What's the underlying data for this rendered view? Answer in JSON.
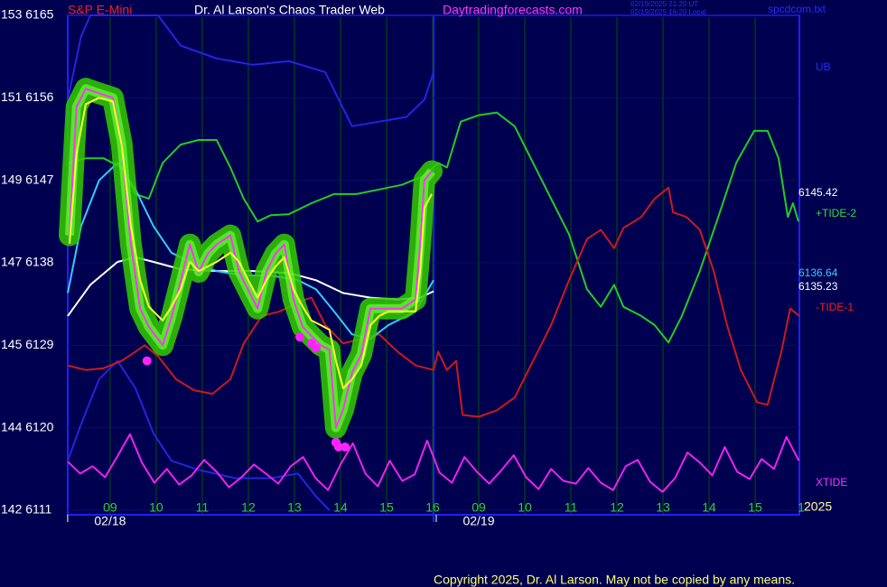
{
  "chart_data": {
    "type": "line",
    "title": "Dr. Al Larson's Chaos Trader Web",
    "symbol": "S&P E-Mini",
    "site": "Daytradingforecasts.com",
    "timestamps": [
      "02/19/2025 21:20 UT",
      "02/19/2025 16:20 Local"
    ],
    "file": "spcdcom.txt",
    "copyright": "Copyright 2025, Dr. Al Larson. May not be copied by any means.",
    "year": "2025",
    "date_labels": [
      {
        "value": 1,
        "label": "02/18"
      },
      {
        "value": 9,
        "label": "02/19"
      }
    ],
    "xlim": [
      0.08,
      15.96
    ],
    "ylim": [
      6111,
      6165
    ],
    "xticks": [
      {
        "value": 1,
        "label": "09"
      },
      {
        "value": 2,
        "label": "10"
      },
      {
        "value": 3,
        "label": "11"
      },
      {
        "value": 4,
        "label": "12"
      },
      {
        "value": 5,
        "label": "13"
      },
      {
        "value": 6,
        "label": "14"
      },
      {
        "value": 7,
        "label": "15"
      },
      {
        "value": 8,
        "label": "16"
      },
      {
        "value": 9,
        "label": "09"
      },
      {
        "value": 10,
        "label": "10"
      },
      {
        "value": 11,
        "label": "11"
      },
      {
        "value": 12,
        "label": "12"
      },
      {
        "value": 13,
        "label": "13"
      },
      {
        "value": 14,
        "label": "14"
      },
      {
        "value": 15,
        "label": "15"
      },
      {
        "value": 16,
        "label": "1"
      }
    ],
    "yticks": [
      {
        "value": 6165,
        "label": "153 6165"
      },
      {
        "value": 6156,
        "label": "151 6156"
      },
      {
        "value": 6147,
        "label": "149 6147"
      },
      {
        "value": 6138,
        "label": "147 6138"
      },
      {
        "value": 6129,
        "label": "145 6129"
      },
      {
        "value": 6120,
        "label": "144 6120"
      },
      {
        "value": 6111,
        "label": "142 6111"
      }
    ],
    "grid": true,
    "right_labels": [
      {
        "text": "UB",
        "color": "#2a2aff"
      },
      {
        "text": "6145.42",
        "color": "#ffffff"
      },
      {
        "text": "+TIDE-2",
        "color": "#33dd33"
      },
      {
        "text": "6136.64",
        "color": "#33ccff"
      },
      {
        "text": "6135.23",
        "color": "#ffffff"
      },
      {
        "text": "-TIDE-1",
        "color": "#ee2222"
      },
      {
        "text": "XTIDE",
        "color": "#ff33ff"
      }
    ],
    "series": [
      {
        "name": "UB",
        "color": "#2424e0",
        "x": [
          0.08,
          0.37,
          0.57,
          2.04,
          2.53,
          3.31,
          4.1,
          4.88,
          5.67,
          6.25,
          6.84,
          7.43,
          7.82,
          8.02
        ],
        "values": [
          6155.8,
          6162.7,
          6165,
          6165,
          6161.7,
          6160.3,
          6159.6,
          6160.0,
          6158.8,
          6152.9,
          6153.4,
          6153.9,
          6155.8,
          6158.8
        ]
      },
      {
        "color": "#2424e0",
        "x": [
          0.08,
          0.37,
          0.76,
          1.16,
          1.55,
          1.94,
          2.33,
          2.92,
          3.71,
          4.49,
          5.08,
          5.47,
          5.76
        ],
        "values": [
          6116.4,
          6120.4,
          6125.3,
          6127.3,
          6124.3,
          6119.4,
          6116.4,
          6115.4,
          6114.5,
          6114.5,
          6115.0,
          6112.5,
          6111.0
        ]
      },
      {
        "name": "+TIDE-2",
        "color": "#22cc22",
        "x": [
          0.08,
          0.47,
          0.86,
          1.25,
          1.55,
          1.84,
          2.14,
          2.53,
          2.92,
          3.31,
          3.61,
          3.9,
          4.2,
          4.49,
          4.88,
          5.37,
          5.86,
          6.35,
          6.84,
          7.33,
          7.82,
          8.12,
          8.31,
          8.61,
          9.0,
          9.39,
          9.78,
          10.18,
          10.57,
          10.96,
          11.35,
          11.65,
          11.94,
          12.14,
          12.53,
          12.82,
          13.12,
          13.41,
          13.8,
          14.2,
          14.59,
          14.98,
          15.27,
          15.51,
          15.71,
          15.82,
          15.94
        ],
        "values": [
          6148.9,
          6149.4,
          6149.4,
          6148.4,
          6145.5,
          6145.0,
          6148.9,
          6150.9,
          6151.4,
          6151.4,
          6148.4,
          6145.0,
          6142.5,
          6143.2,
          6143.3,
          6144.5,
          6145.5,
          6145.5,
          6146.0,
          6146.5,
          6147.5,
          6148.9,
          6148.4,
          6153.4,
          6154.1,
          6154.4,
          6152.9,
          6148.9,
          6145.0,
          6141.1,
          6135.1,
          6133.2,
          6135.6,
          6133.2,
          6132.2,
          6131.2,
          6129.3,
          6132.2,
          6137.1,
          6143.0,
          6148.9,
          6152.4,
          6152.4,
          6149.4,
          6143.0,
          6144.5,
          6142.5
        ]
      },
      {
        "name": "-TIDE-1",
        "color": "#cc1a1a",
        "x": [
          0.08,
          0.47,
          0.86,
          1.25,
          1.55,
          1.75,
          2.04,
          2.43,
          2.82,
          3.22,
          3.61,
          3.9,
          4.29,
          4.69,
          5.08,
          5.37,
          5.67,
          6.06,
          6.45,
          6.84,
          7.24,
          7.63,
          8.02,
          8.12,
          8.31,
          8.51,
          8.65,
          9.0,
          9.39,
          9.78,
          10.18,
          10.57,
          10.96,
          11.35,
          11.65,
          11.94,
          12.14,
          12.53,
          12.82,
          13.12,
          13.22,
          13.51,
          13.8,
          14.1,
          14.39,
          14.69,
          15.04,
          15.27,
          15.57,
          15.76,
          15.96
        ],
        "values": [
          6126.8,
          6126.3,
          6126.5,
          6127.3,
          6128.3,
          6129.0,
          6127.8,
          6125.3,
          6124.1,
          6123.7,
          6125.3,
          6129.2,
          6132.2,
          6132.7,
          6133.7,
          6134.2,
          6131.2,
          6129.2,
          6129.7,
          6130.2,
          6128.3,
          6126.8,
          6126.3,
          6128.3,
          6126.3,
          6127.3,
          6121.4,
          6121.2,
          6121.9,
          6123.3,
          6127.3,
          6131.2,
          6136.1,
          6140.6,
          6141.6,
          6139.6,
          6141.8,
          6143.0,
          6145.0,
          6146.2,
          6143.5,
          6143.0,
          6141.6,
          6137.1,
          6131.2,
          6126.3,
          6122.8,
          6122.5,
          6128.3,
          6133.0,
          6132.2
        ]
      },
      {
        "color": "#ffffff",
        "x": [
          0.08,
          0.57,
          1.16,
          1.55,
          1.94,
          2.53,
          3.31,
          4.1,
          4.88,
          5.47,
          6.06,
          6.65,
          7.24,
          7.73,
          8.02
        ],
        "values": [
          6132.2,
          6135.6,
          6138.1,
          6138.6,
          6138.1,
          6137.3,
          6137.1,
          6137.1,
          6136.9,
          6136.1,
          6134.7,
          6134.2,
          6134.0,
          6134.2,
          6134.9
        ]
      },
      {
        "color": "#33ccff",
        "x": [
          0.08,
          0.37,
          0.76,
          1.16,
          1.55,
          1.94,
          2.33,
          2.73,
          3.31,
          3.9,
          4.49,
          5.08,
          5.47,
          5.86,
          6.25,
          6.65,
          7.04,
          7.63,
          8.02
        ],
        "values": [
          6134.7,
          6142.0,
          6147.0,
          6148.9,
          6146.0,
          6142.0,
          6139.1,
          6138.1,
          6137.1,
          6136.6,
          6136.6,
          6136.1,
          6135.1,
          6132.7,
          6130.2,
          6129.7,
          6131.2,
          6132.7,
          6136.1
        ]
      },
      {
        "color": "#ff33ff",
        "glow": "#33cc00",
        "x": [
          0.12,
          0.27,
          0.47,
          0.76,
          1.06,
          1.25,
          1.45,
          1.65,
          1.84,
          2.14,
          2.33,
          2.53,
          2.73,
          2.92,
          3.12,
          3.31,
          3.61,
          3.8,
          4.0,
          4.2,
          4.39,
          4.59,
          4.78,
          4.98,
          5.18,
          5.37,
          5.57,
          5.76,
          5.9,
          6.06,
          6.25,
          6.45,
          6.65,
          6.84,
          7.04,
          7.33,
          7.63,
          7.73,
          7.82,
          7.98
        ],
        "values": [
          6141,
          6155,
          6157,
          6156.5,
          6156,
          6151,
          6140,
          6133,
          6131,
          6129,
          6132,
          6136,
          6140,
          6137,
          6139,
          6140,
          6141,
          6137,
          6135,
          6133,
          6137,
          6139,
          6140,
          6134,
          6131,
          6130,
          6129,
          6128.5,
          6120,
          6122,
          6126,
          6128,
          6133,
          6133,
          6133,
          6133,
          6134,
          6140,
          6147,
          6148
        ]
      },
      {
        "color": "#ffff33",
        "x": [
          0.12,
          0.27,
          0.47,
          0.76,
          1.06,
          1.25,
          1.45,
          1.65,
          1.84,
          2.14,
          2.33,
          2.53,
          2.73,
          2.92,
          3.12,
          3.31,
          3.61,
          3.8,
          4.0,
          4.2,
          4.39,
          4.59,
          4.78,
          4.98,
          5.18,
          5.37,
          5.57,
          5.76,
          5.9,
          6.06,
          6.25,
          6.45,
          6.65,
          6.84,
          7.04,
          7.33,
          7.63,
          7.73,
          7.82,
          7.98
        ],
        "values": [
          6140.1,
          6149.9,
          6155.3,
          6156.0,
          6155.6,
          6150.9,
          6142.0,
          6136.1,
          6133.2,
          6131.7,
          6133.2,
          6135.1,
          6138.1,
          6137.1,
          6137.6,
          6138.1,
          6139.1,
          6138.1,
          6136.1,
          6134.2,
          6136.1,
          6137.6,
          6138.6,
          6135.1,
          6133.2,
          6131.7,
          6131.2,
          6130.7,
          6127.3,
          6124.3,
          6125.3,
          6126.8,
          6131.2,
          6132.2,
          6132.7,
          6132.7,
          6132.7,
          6137.1,
          6144.0,
          6145.5
        ]
      },
      {
        "name": "XTIDE",
        "color": "#ee22ee",
        "x": [
          0.08,
          0.35,
          0.62,
          0.89,
          1.16,
          1.43,
          1.69,
          1.96,
          2.23,
          2.5,
          2.77,
          3.04,
          3.31,
          3.58,
          3.85,
          4.12,
          4.38,
          4.65,
          4.92,
          5.19,
          5.46,
          5.73,
          6.0,
          6.27,
          6.54,
          6.81,
          7.07,
          7.34,
          7.61,
          7.88,
          8.15,
          8.42,
          8.69,
          8.96,
          9.23,
          9.5,
          9.76,
          10.03,
          10.3,
          10.57,
          10.84,
          11.11,
          11.38,
          11.65,
          11.92,
          12.19,
          12.45,
          12.72,
          12.99,
          13.26,
          13.53,
          13.8,
          14.07,
          14.34,
          14.61,
          14.88,
          15.14,
          15.41,
          15.68,
          15.95
        ],
        "values": [
          6116.3,
          6115.0,
          6115.8,
          6114.6,
          6116.9,
          6119.3,
          6116.2,
          6114.0,
          6115.5,
          6113.8,
          6114.8,
          6116.5,
          6115.2,
          6113.5,
          6114.6,
          6116.0,
          6115.0,
          6113.9,
          6115.8,
          6116.8,
          6114.5,
          6113.2,
          6116.0,
          6118.3,
          6115.0,
          6113.6,
          6116.4,
          6114.2,
          6114.9,
          6118.6,
          6115.1,
          6114.0,
          6116.8,
          6115.2,
          6113.9,
          6115.4,
          6117.0,
          6114.6,
          6113.3,
          6115.5,
          6114.2,
          6113.9,
          6115.6,
          6114.0,
          6113.2,
          6115.8,
          6116.5,
          6114.1,
          6113.0,
          6114.5,
          6117.3,
          6116.2,
          6114.8,
          6117.9,
          6115.2,
          6114.4,
          6116.6,
          6115.5,
          6119.0,
          6116.4
        ]
      }
    ],
    "lows": {
      "color": "#ff22ff",
      "x": [
        1.8,
        5.12,
        5.37,
        5.47,
        5.9,
        5.96,
        6.1
      ],
      "values": [
        6127.3,
        6129.9,
        6129.2,
        6128.7,
        6118.4,
        6117.9,
        6117.9
      ]
    }
  }
}
